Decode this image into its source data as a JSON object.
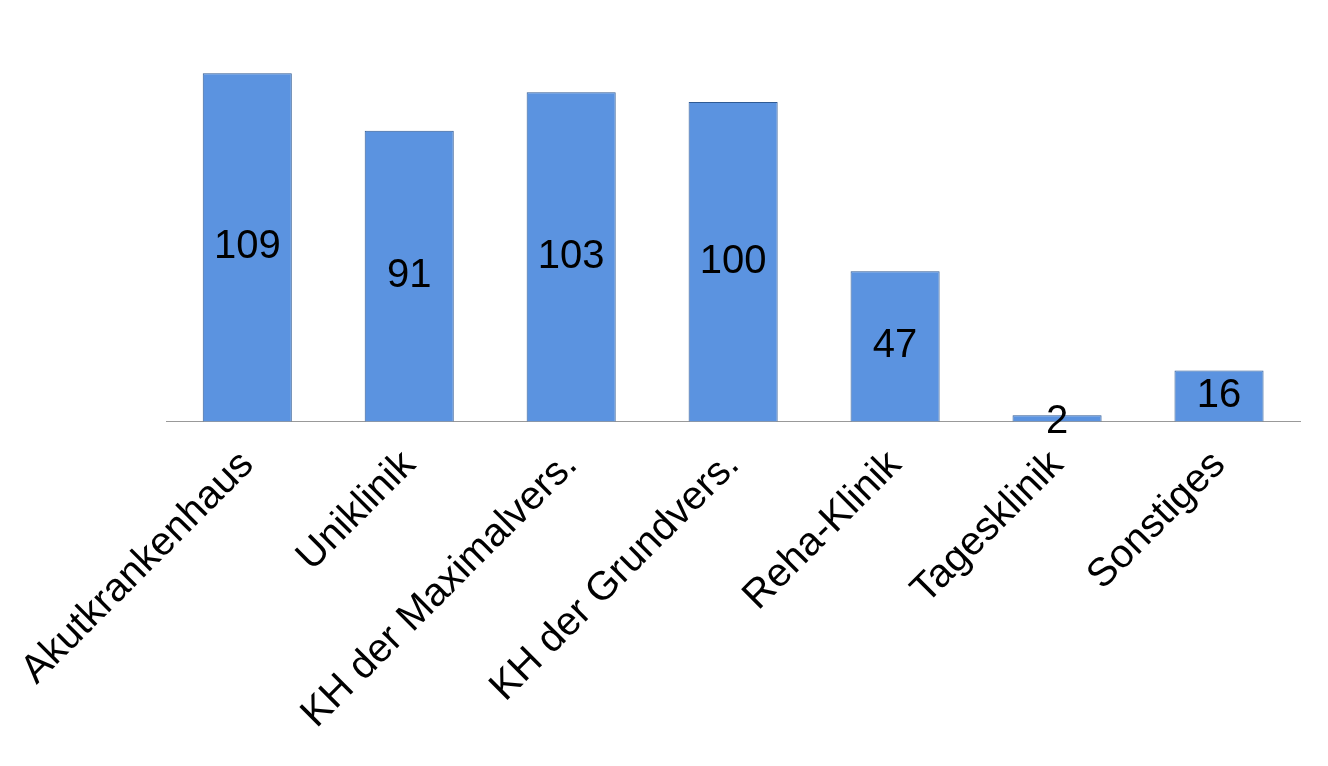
{
  "chart_data": {
    "type": "bar",
    "categories": [
      "Akutkrankenhaus",
      "Uniklinik",
      "KH der Maximalvers.",
      "KH der Grundvers.",
      "Reha-Klinik",
      "Tagesklinik",
      "Sonstiges"
    ],
    "values": [
      109,
      91,
      103,
      100,
      47,
      2,
      16
    ],
    "color": "#5b93e0",
    "data_labels": true,
    "grid": false,
    "legend": false
  }
}
